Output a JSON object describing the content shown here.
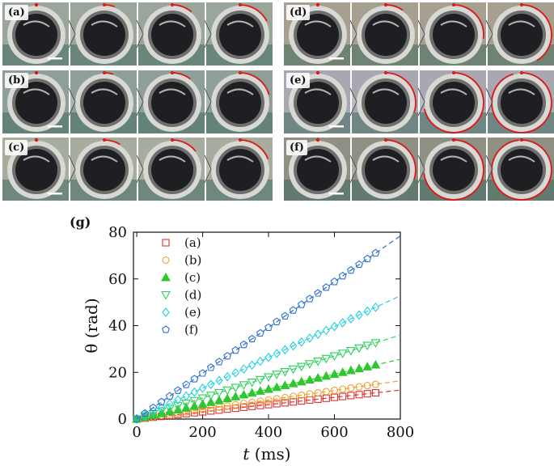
{
  "panels": [
    {
      "label": "(a)",
      "palette": "#9aa69a",
      "arc": [
        0,
        0.35,
        0.7,
        1.1
      ]
    },
    {
      "label": "(b)",
      "palette": "#8e9e98",
      "arc": [
        0,
        0.3,
        0.65,
        1.3
      ]
    },
    {
      "label": "(c)",
      "palette": "#a7ad9e",
      "arc": [
        0,
        0.55,
        0.9,
        1.2
      ]
    },
    {
      "label": "(d)",
      "palette": "#a79f8f",
      "arc": [
        0,
        0.6,
        1.7,
        2.6
      ]
    },
    {
      "label": "(e)",
      "palette": "#a9a7b1",
      "arc": [
        0,
        1.9,
        4.5,
        6.0
      ]
    },
    {
      "label": "(f)",
      "palette": "#8f8f84",
      "arc": [
        0,
        1.9,
        4.6,
        6.2
      ]
    }
  ],
  "figure_label": "(g)",
  "chart_data": {
    "type": "scatter",
    "xlabel_italic": "t",
    "xlabel_unit": "(ms)",
    "ylabel": "θ (rad)",
    "xlim": [
      -10,
      800
    ],
    "ylim": [
      0,
      80
    ],
    "xticks": [
      0,
      200,
      400,
      600,
      800
    ],
    "yticks": [
      0,
      20,
      40,
      60,
      80
    ],
    "x": [
      0,
      25,
      50,
      75,
      100,
      125,
      150,
      175,
      200,
      225,
      250,
      275,
      300,
      325,
      350,
      375,
      400,
      425,
      450,
      475,
      500,
      525,
      550,
      575,
      600,
      625,
      650,
      675,
      700,
      725
    ],
    "legend_position": "top-left",
    "series": [
      {
        "name": "(a)",
        "color": "#e03030",
        "marker": "square",
        "slope": 0.0155
      },
      {
        "name": "(b)",
        "color": "#f0a030",
        "marker": "circle",
        "slope": 0.0205
      },
      {
        "name": "(c)",
        "color": "#2ec82e",
        "marker": "triangle-up",
        "slope": 0.032
      },
      {
        "name": "(d)",
        "color": "#2ed05a",
        "marker": "triangle-down",
        "slope": 0.045
      },
      {
        "name": "(e)",
        "color": "#22d0e0",
        "marker": "diamond",
        "slope": 0.066
      },
      {
        "name": "(f)",
        "color": "#2f6fd0",
        "marker": "pentagon",
        "slope": 0.098
      }
    ]
  }
}
